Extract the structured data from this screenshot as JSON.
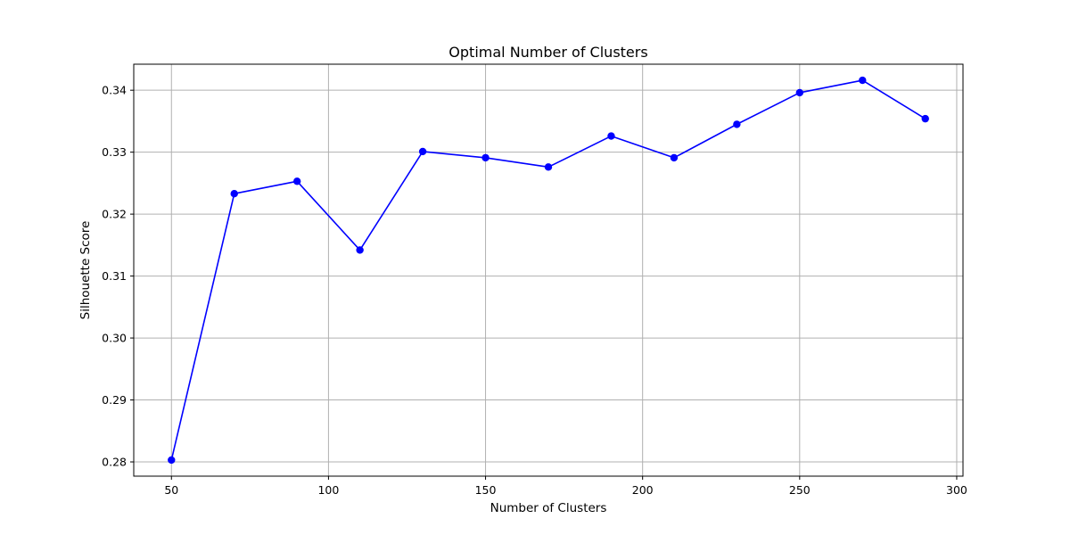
{
  "chart_data": {
    "type": "line",
    "title": "Optimal Number of Clusters",
    "xlabel": "Number of Clusters",
    "ylabel": "Silhouette Score",
    "x": [
      50,
      70,
      90,
      110,
      130,
      150,
      170,
      190,
      210,
      230,
      250,
      270,
      290
    ],
    "series": [
      {
        "values": [
          0.2803,
          0.3233,
          0.3253,
          0.3142,
          0.3301,
          0.3291,
          0.3276,
          0.3326,
          0.3291,
          0.3345,
          0.3396,
          0.3416,
          0.3354
        ]
      }
    ],
    "xlim": [
      38,
      302
    ],
    "ylim": [
      0.2777,
      0.3442
    ],
    "xticks": [
      50,
      100,
      150,
      200,
      250,
      300
    ],
    "xtick_labels": [
      "50",
      "100",
      "150",
      "200",
      "250",
      "300"
    ],
    "yticks": [
      0.28,
      0.29,
      0.3,
      0.31,
      0.32,
      0.33,
      0.34
    ],
    "ytick_labels": [
      "0.28",
      "0.29",
      "0.30",
      "0.31",
      "0.32",
      "0.33",
      "0.34"
    ],
    "grid": true,
    "line_color": "#0000ff",
    "marker": "circle",
    "legend": "none"
  }
}
